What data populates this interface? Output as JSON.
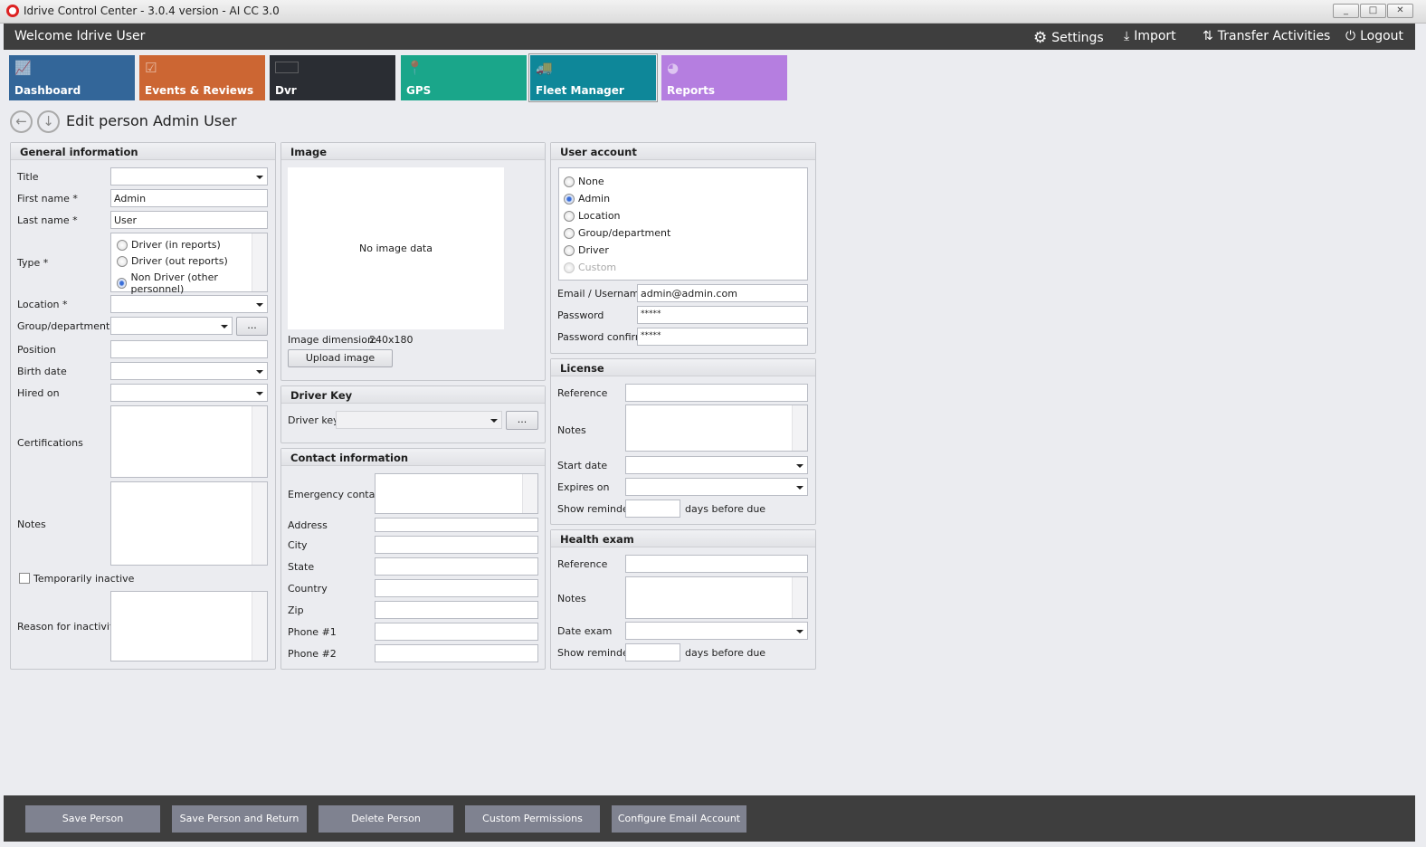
{
  "window": {
    "title": "Idrive Control Center - 3.0.4 version - AI CC 3.0",
    "min": "_",
    "max": "□",
    "close": "✕"
  },
  "header": {
    "welcome": "Welcome Idrive User",
    "settings": "Settings",
    "import": "Import",
    "transfer": "Transfer Activities",
    "logout": "Logout"
  },
  "tiles": [
    {
      "label": "Dashboard",
      "color": "#336699",
      "icon": "chart-icon"
    },
    {
      "label": "Events & Reviews",
      "color": "#cc6633",
      "icon": "clipboard-icon"
    },
    {
      "label": "Dvr",
      "color": "#2a2d33",
      "icon": "dvr-icon"
    },
    {
      "label": "GPS",
      "color": "#1aa68a",
      "icon": "map-pin-icon"
    },
    {
      "label": "Fleet Manager",
      "color": "#0e8799",
      "icon": "vehicles-icon",
      "active": true
    },
    {
      "label": "Reports",
      "color": "#b57ee0",
      "icon": "pie-chart-icon"
    }
  ],
  "page": {
    "title": "Edit person Admin User"
  },
  "general": {
    "header": "General information",
    "title": "Title",
    "first_name": "First name *",
    "first_name_value": "Admin",
    "last_name": "Last name *",
    "last_name_value": "User",
    "type": "Type *",
    "type_options": [
      {
        "label": "Driver (in reports)",
        "checked": false
      },
      {
        "label": "Driver (out reports)",
        "checked": false
      },
      {
        "label": "Non Driver (other personnel)",
        "checked": true
      }
    ],
    "location": "Location *",
    "group": "Group/department",
    "browse": "...",
    "position": "Position",
    "birth_date": "Birth date",
    "hired_on": "Hired on",
    "certifications": "Certifications",
    "notes": "Notes",
    "temporarily_inactive": "Temporarily inactive",
    "reason": "Reason for inactivity"
  },
  "image": {
    "header": "Image",
    "no_data": "No image data",
    "dimension_label": "Image dimension:",
    "dimension_value": "240x180",
    "upload": "Upload image"
  },
  "driver_key": {
    "header": "Driver Key",
    "label": "Driver key",
    "browse": "..."
  },
  "contact": {
    "header": "Contact information",
    "emergency": "Emergency contact",
    "address": "Address",
    "city": "City",
    "state": "State",
    "country": "Country",
    "zip": "Zip",
    "phone1": "Phone #1",
    "phone2": "Phone #2"
  },
  "user_account": {
    "header": "User account",
    "options": [
      {
        "label": "None",
        "checked": false
      },
      {
        "label": "Admin",
        "checked": true
      },
      {
        "label": "Location",
        "checked": false
      },
      {
        "label": "Group/department",
        "checked": false
      },
      {
        "label": "Driver",
        "checked": false
      },
      {
        "label": "Custom",
        "checked": false,
        "disabled": true
      }
    ],
    "email_label": "Email / Username",
    "email_value": "admin@admin.com",
    "password_label": "Password",
    "password_value": "*****",
    "confirm_label": "Password confirm",
    "confirm_value": "*****"
  },
  "license": {
    "header": "License",
    "reference": "Reference",
    "notes": "Notes",
    "start_date": "Start date",
    "expires_on": "Expires on",
    "show_reminder": "Show reminder",
    "days_before": "days before due"
  },
  "health": {
    "header": "Health exam",
    "reference": "Reference",
    "notes": "Notes",
    "date_exam": "Date exam",
    "show_reminder": "Show reminder",
    "days_before": "days before due"
  },
  "actions": {
    "save": "Save Person",
    "save_return": "Save Person and Return",
    "delete": "Delete Person",
    "permissions": "Custom Permissions",
    "email": "Configure Email Account"
  }
}
